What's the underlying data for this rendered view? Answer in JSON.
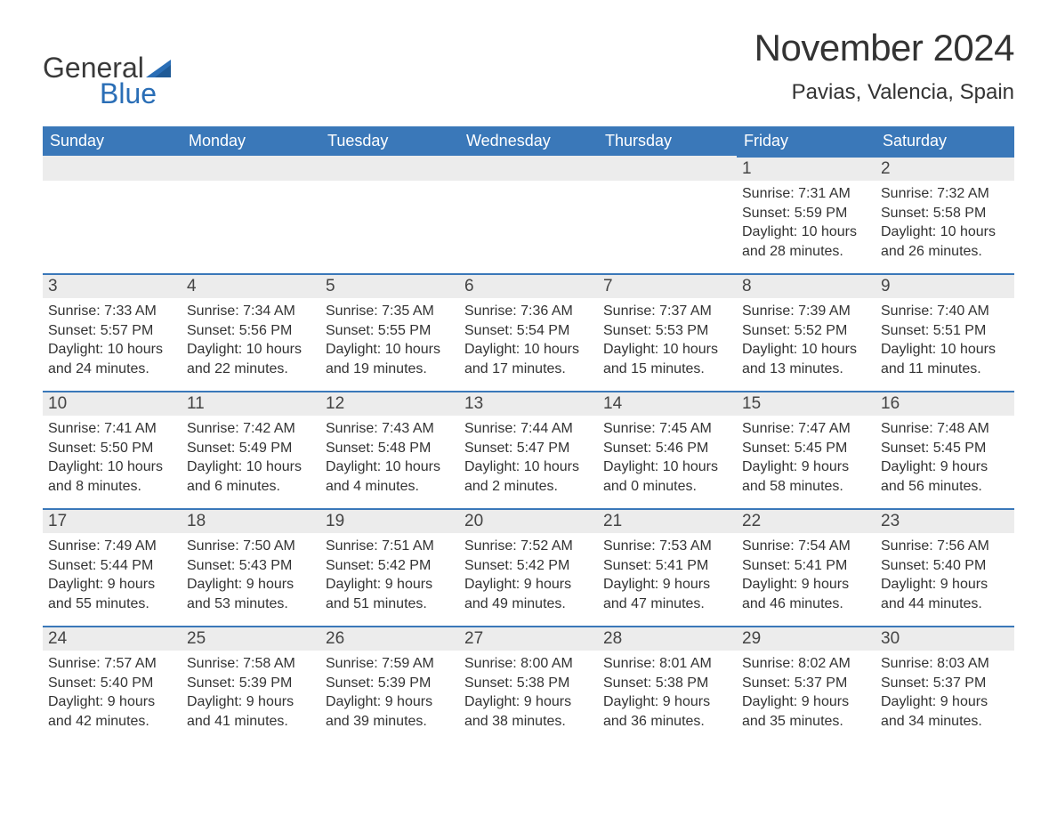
{
  "logo": {
    "word1": "General",
    "word2": "Blue",
    "sail_color": "#2a6eb6"
  },
  "title": "November 2024",
  "location": "Pavias, Valencia, Spain",
  "colors": {
    "header_bg": "#3a78b9",
    "daynum_bg": "#ececec",
    "daynum_border": "#3a78b9",
    "text": "#333333",
    "background": "#ffffff"
  },
  "typography": {
    "title_fontsize": 42,
    "location_fontsize": 24,
    "dow_fontsize": 18,
    "daynum_fontsize": 19,
    "body_fontsize": 16
  },
  "layout": {
    "columns": 7,
    "rows": 5,
    "cell_min_height": 132
  },
  "days_of_week": [
    "Sunday",
    "Monday",
    "Tuesday",
    "Wednesday",
    "Thursday",
    "Friday",
    "Saturday"
  ],
  "weeks": [
    [
      {
        "empty": true
      },
      {
        "empty": true
      },
      {
        "empty": true
      },
      {
        "empty": true
      },
      {
        "empty": true
      },
      {
        "num": "1",
        "sunrise": "Sunrise: 7:31 AM",
        "sunset": "Sunset: 5:59 PM",
        "daylight1": "Daylight: 10 hours",
        "daylight2": "and 28 minutes."
      },
      {
        "num": "2",
        "sunrise": "Sunrise: 7:32 AM",
        "sunset": "Sunset: 5:58 PM",
        "daylight1": "Daylight: 10 hours",
        "daylight2": "and 26 minutes."
      }
    ],
    [
      {
        "num": "3",
        "sunrise": "Sunrise: 7:33 AM",
        "sunset": "Sunset: 5:57 PM",
        "daylight1": "Daylight: 10 hours",
        "daylight2": "and 24 minutes."
      },
      {
        "num": "4",
        "sunrise": "Sunrise: 7:34 AM",
        "sunset": "Sunset: 5:56 PM",
        "daylight1": "Daylight: 10 hours",
        "daylight2": "and 22 minutes."
      },
      {
        "num": "5",
        "sunrise": "Sunrise: 7:35 AM",
        "sunset": "Sunset: 5:55 PM",
        "daylight1": "Daylight: 10 hours",
        "daylight2": "and 19 minutes."
      },
      {
        "num": "6",
        "sunrise": "Sunrise: 7:36 AM",
        "sunset": "Sunset: 5:54 PM",
        "daylight1": "Daylight: 10 hours",
        "daylight2": "and 17 minutes."
      },
      {
        "num": "7",
        "sunrise": "Sunrise: 7:37 AM",
        "sunset": "Sunset: 5:53 PM",
        "daylight1": "Daylight: 10 hours",
        "daylight2": "and 15 minutes."
      },
      {
        "num": "8",
        "sunrise": "Sunrise: 7:39 AM",
        "sunset": "Sunset: 5:52 PM",
        "daylight1": "Daylight: 10 hours",
        "daylight2": "and 13 minutes."
      },
      {
        "num": "9",
        "sunrise": "Sunrise: 7:40 AM",
        "sunset": "Sunset: 5:51 PM",
        "daylight1": "Daylight: 10 hours",
        "daylight2": "and 11 minutes."
      }
    ],
    [
      {
        "num": "10",
        "sunrise": "Sunrise: 7:41 AM",
        "sunset": "Sunset: 5:50 PM",
        "daylight1": "Daylight: 10 hours",
        "daylight2": "and 8 minutes."
      },
      {
        "num": "11",
        "sunrise": "Sunrise: 7:42 AM",
        "sunset": "Sunset: 5:49 PM",
        "daylight1": "Daylight: 10 hours",
        "daylight2": "and 6 minutes."
      },
      {
        "num": "12",
        "sunrise": "Sunrise: 7:43 AM",
        "sunset": "Sunset: 5:48 PM",
        "daylight1": "Daylight: 10 hours",
        "daylight2": "and 4 minutes."
      },
      {
        "num": "13",
        "sunrise": "Sunrise: 7:44 AM",
        "sunset": "Sunset: 5:47 PM",
        "daylight1": "Daylight: 10 hours",
        "daylight2": "and 2 minutes."
      },
      {
        "num": "14",
        "sunrise": "Sunrise: 7:45 AM",
        "sunset": "Sunset: 5:46 PM",
        "daylight1": "Daylight: 10 hours",
        "daylight2": "and 0 minutes."
      },
      {
        "num": "15",
        "sunrise": "Sunrise: 7:47 AM",
        "sunset": "Sunset: 5:45 PM",
        "daylight1": "Daylight: 9 hours",
        "daylight2": "and 58 minutes."
      },
      {
        "num": "16",
        "sunrise": "Sunrise: 7:48 AM",
        "sunset": "Sunset: 5:45 PM",
        "daylight1": "Daylight: 9 hours",
        "daylight2": "and 56 minutes."
      }
    ],
    [
      {
        "num": "17",
        "sunrise": "Sunrise: 7:49 AM",
        "sunset": "Sunset: 5:44 PM",
        "daylight1": "Daylight: 9 hours",
        "daylight2": "and 55 minutes."
      },
      {
        "num": "18",
        "sunrise": "Sunrise: 7:50 AM",
        "sunset": "Sunset: 5:43 PM",
        "daylight1": "Daylight: 9 hours",
        "daylight2": "and 53 minutes."
      },
      {
        "num": "19",
        "sunrise": "Sunrise: 7:51 AM",
        "sunset": "Sunset: 5:42 PM",
        "daylight1": "Daylight: 9 hours",
        "daylight2": "and 51 minutes."
      },
      {
        "num": "20",
        "sunrise": "Sunrise: 7:52 AM",
        "sunset": "Sunset: 5:42 PM",
        "daylight1": "Daylight: 9 hours",
        "daylight2": "and 49 minutes."
      },
      {
        "num": "21",
        "sunrise": "Sunrise: 7:53 AM",
        "sunset": "Sunset: 5:41 PM",
        "daylight1": "Daylight: 9 hours",
        "daylight2": "and 47 minutes."
      },
      {
        "num": "22",
        "sunrise": "Sunrise: 7:54 AM",
        "sunset": "Sunset: 5:41 PM",
        "daylight1": "Daylight: 9 hours",
        "daylight2": "and 46 minutes."
      },
      {
        "num": "23",
        "sunrise": "Sunrise: 7:56 AM",
        "sunset": "Sunset: 5:40 PM",
        "daylight1": "Daylight: 9 hours",
        "daylight2": "and 44 minutes."
      }
    ],
    [
      {
        "num": "24",
        "sunrise": "Sunrise: 7:57 AM",
        "sunset": "Sunset: 5:40 PM",
        "daylight1": "Daylight: 9 hours",
        "daylight2": "and 42 minutes."
      },
      {
        "num": "25",
        "sunrise": "Sunrise: 7:58 AM",
        "sunset": "Sunset: 5:39 PM",
        "daylight1": "Daylight: 9 hours",
        "daylight2": "and 41 minutes."
      },
      {
        "num": "26",
        "sunrise": "Sunrise: 7:59 AM",
        "sunset": "Sunset: 5:39 PM",
        "daylight1": "Daylight: 9 hours",
        "daylight2": "and 39 minutes."
      },
      {
        "num": "27",
        "sunrise": "Sunrise: 8:00 AM",
        "sunset": "Sunset: 5:38 PM",
        "daylight1": "Daylight: 9 hours",
        "daylight2": "and 38 minutes."
      },
      {
        "num": "28",
        "sunrise": "Sunrise: 8:01 AM",
        "sunset": "Sunset: 5:38 PM",
        "daylight1": "Daylight: 9 hours",
        "daylight2": "and 36 minutes."
      },
      {
        "num": "29",
        "sunrise": "Sunrise: 8:02 AM",
        "sunset": "Sunset: 5:37 PM",
        "daylight1": "Daylight: 9 hours",
        "daylight2": "and 35 minutes."
      },
      {
        "num": "30",
        "sunrise": "Sunrise: 8:03 AM",
        "sunset": "Sunset: 5:37 PM",
        "daylight1": "Daylight: 9 hours",
        "daylight2": "and 34 minutes."
      }
    ]
  ]
}
